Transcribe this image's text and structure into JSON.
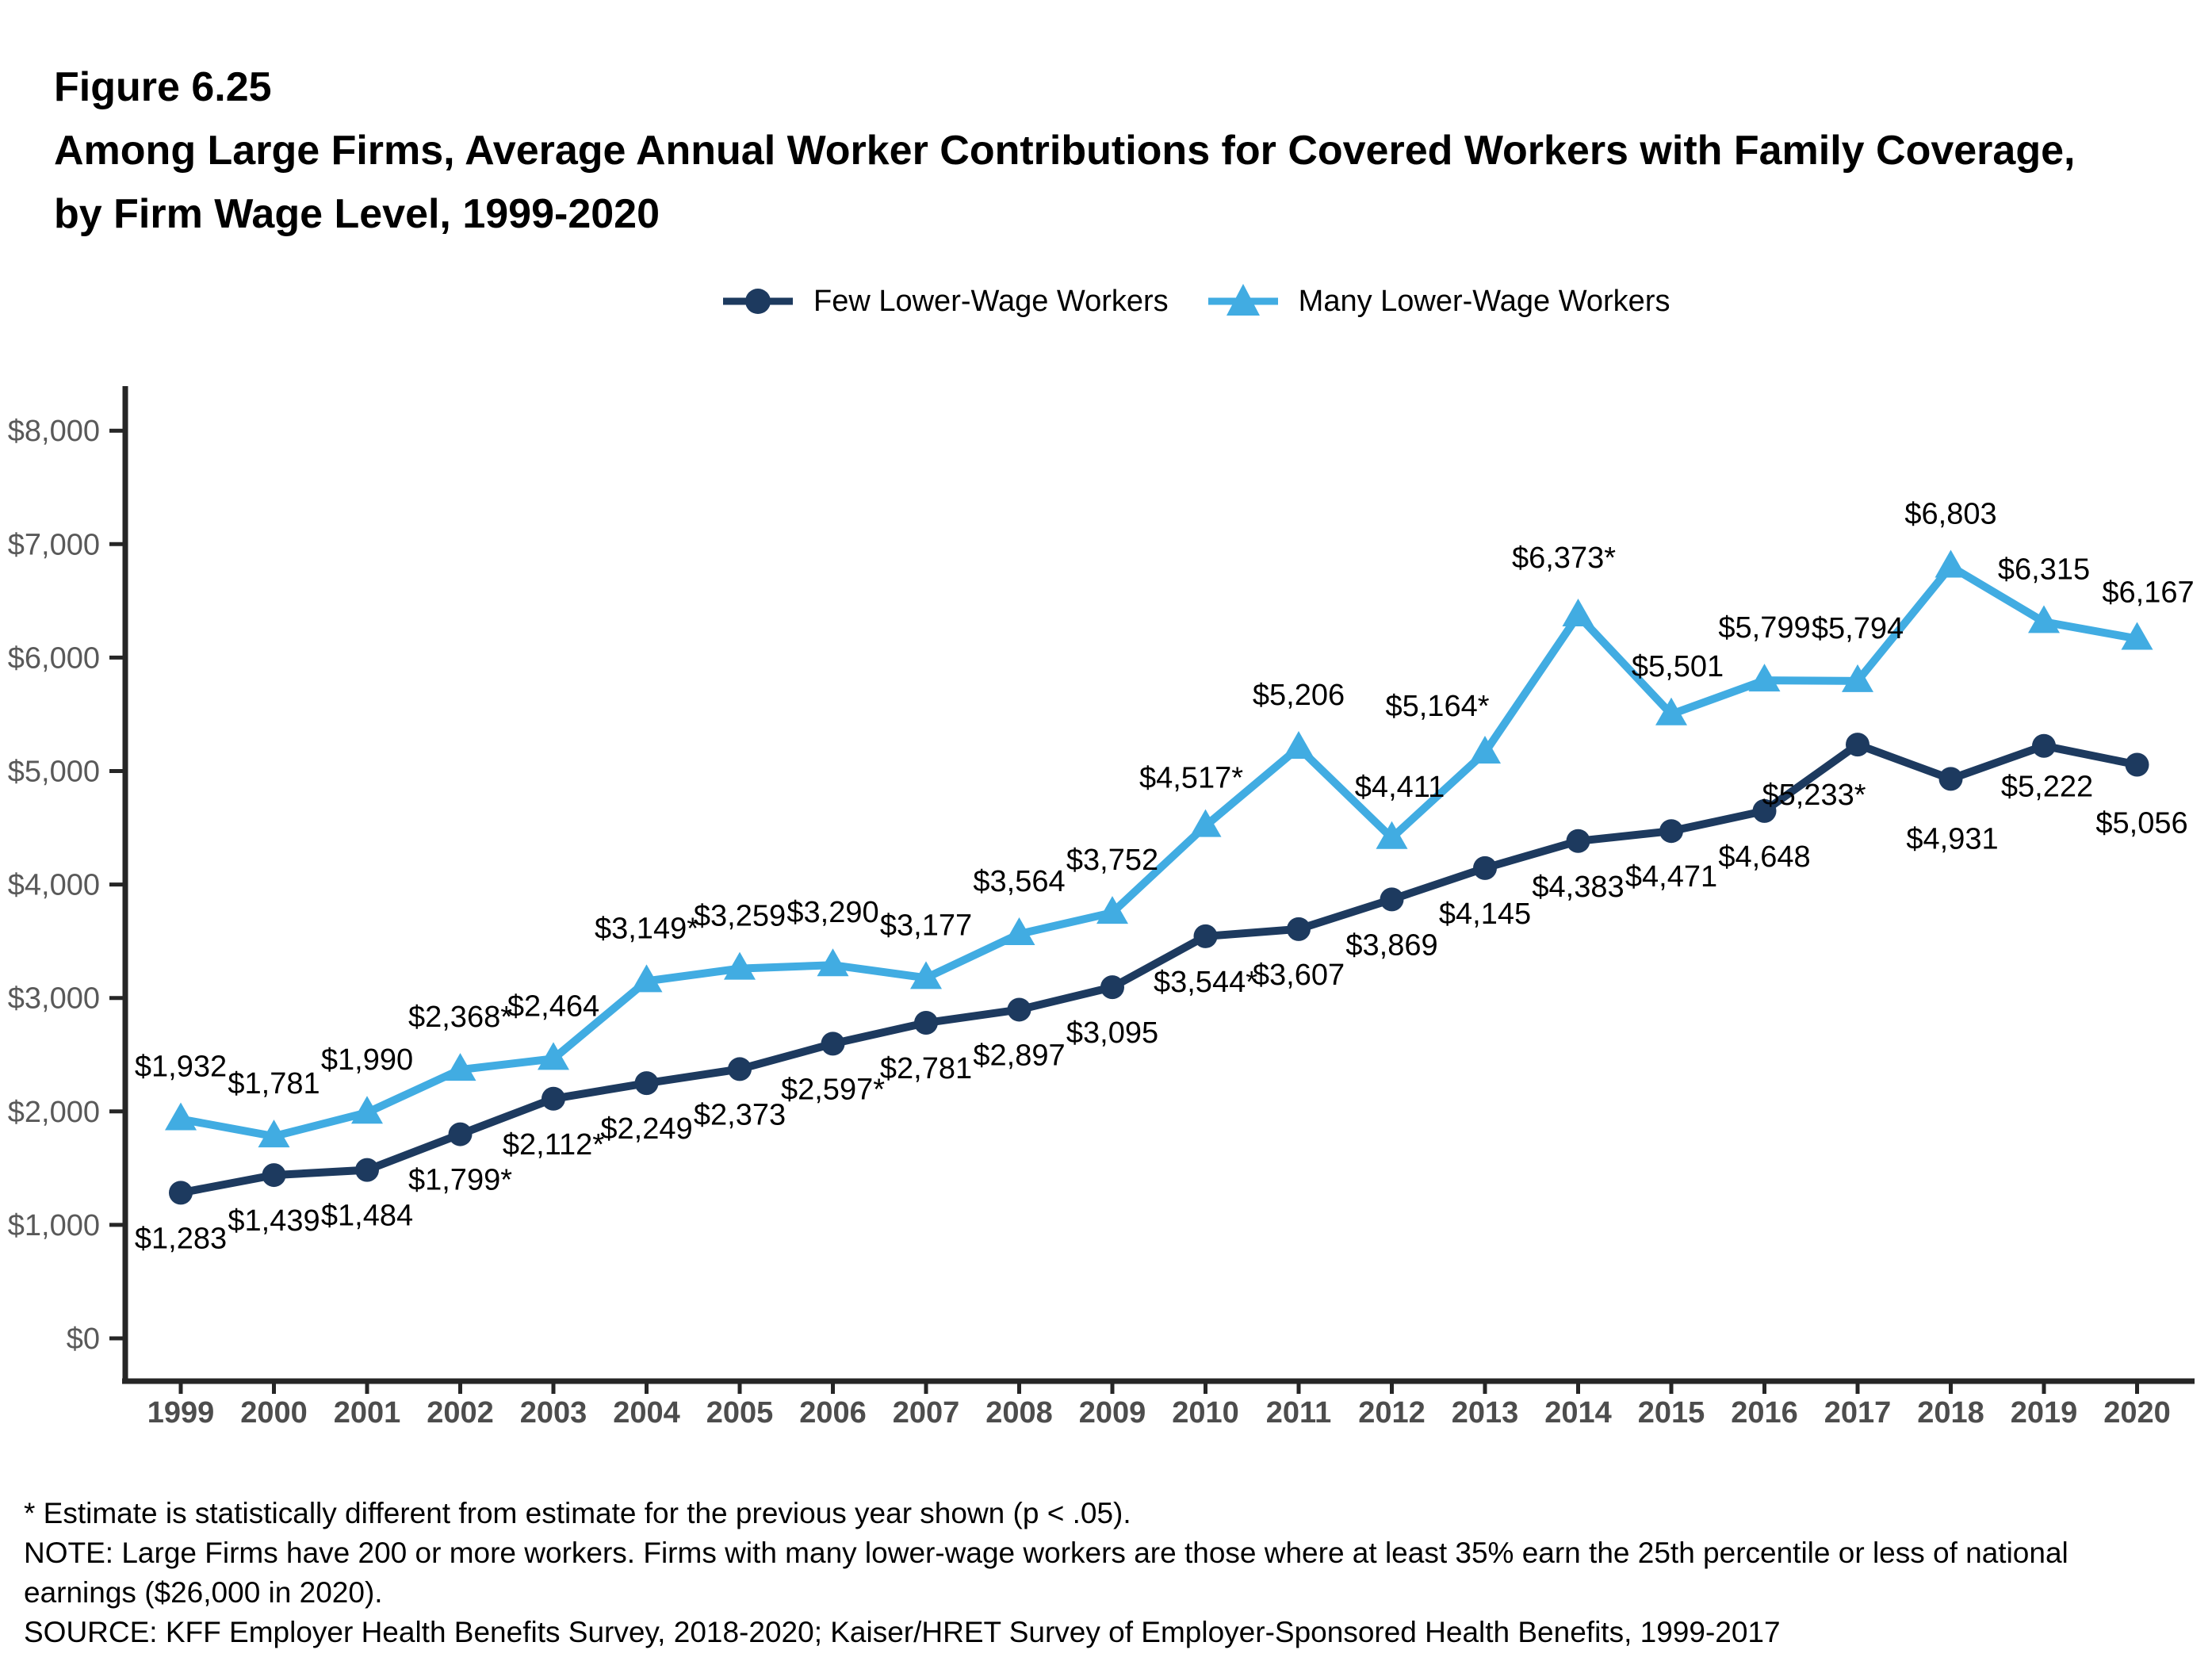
{
  "figure": {
    "number": "Figure 6.25",
    "title": "Among Large Firms, Average Annual Worker Contributions for Covered Workers with Family Coverage, by Firm Wage Level, 1999-2020"
  },
  "colors": {
    "axis": "#262626",
    "y_tick_label": "#595959",
    "x_tick_label": "#4d4d4d",
    "data_label": "#000000"
  },
  "chart_data": {
    "type": "line",
    "title": "Among Large Firms, Average Annual Worker Contributions for Covered Workers with Family Coverage, by Firm Wage Level, 1999-2020",
    "xlabel": "",
    "ylabel": "",
    "grid": false,
    "legend_position": "top",
    "ylim": [
      0,
      8000
    ],
    "x": [
      1999,
      2000,
      2001,
      2002,
      2003,
      2004,
      2005,
      2006,
      2007,
      2008,
      2009,
      2010,
      2011,
      2012,
      2013,
      2014,
      2015,
      2016,
      2017,
      2018,
      2019,
      2020
    ],
    "y_axis": {
      "ticks": [
        "$0",
        "$1,000",
        "$2,000",
        "$3,000",
        "$4,000",
        "$5,000",
        "$6,000",
        "$7,000",
        "$8,000"
      ]
    },
    "series": [
      {
        "name": "Few Lower-Wage Workers",
        "marker": "circle",
        "color": "#1d3a5f",
        "values": [
          1283,
          1439,
          1484,
          1799,
          2112,
          2249,
          2373,
          2597,
          2781,
          2897,
          3095,
          3544,
          3607,
          3869,
          4145,
          4383,
          4471,
          4648,
          5233,
          4931,
          5222,
          5056
        ],
        "labels": [
          "$1,283",
          "$1,439",
          "$1,484",
          "$1,799*",
          "$2,112*",
          "$2,249",
          "$2,373",
          "$2,597*",
          "$2,781",
          "$2,897",
          "$3,095",
          "$3,544*",
          "$3,607",
          "$3,869",
          "$4,145",
          "$4,383",
          "$4,471",
          "$4,648",
          "$5,233*",
          "$4,931",
          "$5,222",
          "$5,056"
        ]
      },
      {
        "name": "Many Lower-Wage Workers",
        "marker": "triangle",
        "color": "#41ace2",
        "values": [
          1932,
          1781,
          1990,
          2368,
          2464,
          3149,
          3259,
          3290,
          3177,
          3564,
          3752,
          4517,
          5206,
          4411,
          5164,
          6373,
          5501,
          5799,
          5794,
          6803,
          6315,
          6167
        ],
        "labels": [
          "$1,932",
          "$1,781",
          "$1,990",
          "$2,368*",
          "$2,464",
          "$3,149*",
          "$3,259",
          "$3,290",
          "$3,177",
          "$3,564",
          "$3,752",
          "$4,517*",
          "$5,206",
          "$4,411",
          "$5,164*",
          "$6,373*",
          "$5,501",
          "$5,799",
          "$5,794",
          "$6,803",
          "$6,315",
          "$6,167"
        ]
      }
    ]
  },
  "footnotes": {
    "asterisk": "* Estimate is statistically different from estimate for the previous year shown (p < .05).",
    "note": "NOTE: Large Firms have 200 or more workers. Firms with many lower-wage workers are those where at least 35% earn the 25th percentile or less of national earnings ($26,000 in 2020).",
    "source": "SOURCE: KFF Employer Health Benefits Survey, 2018-2020; Kaiser/HRET Survey of Employer-Sponsored Health Benefits, 1999-2017"
  }
}
